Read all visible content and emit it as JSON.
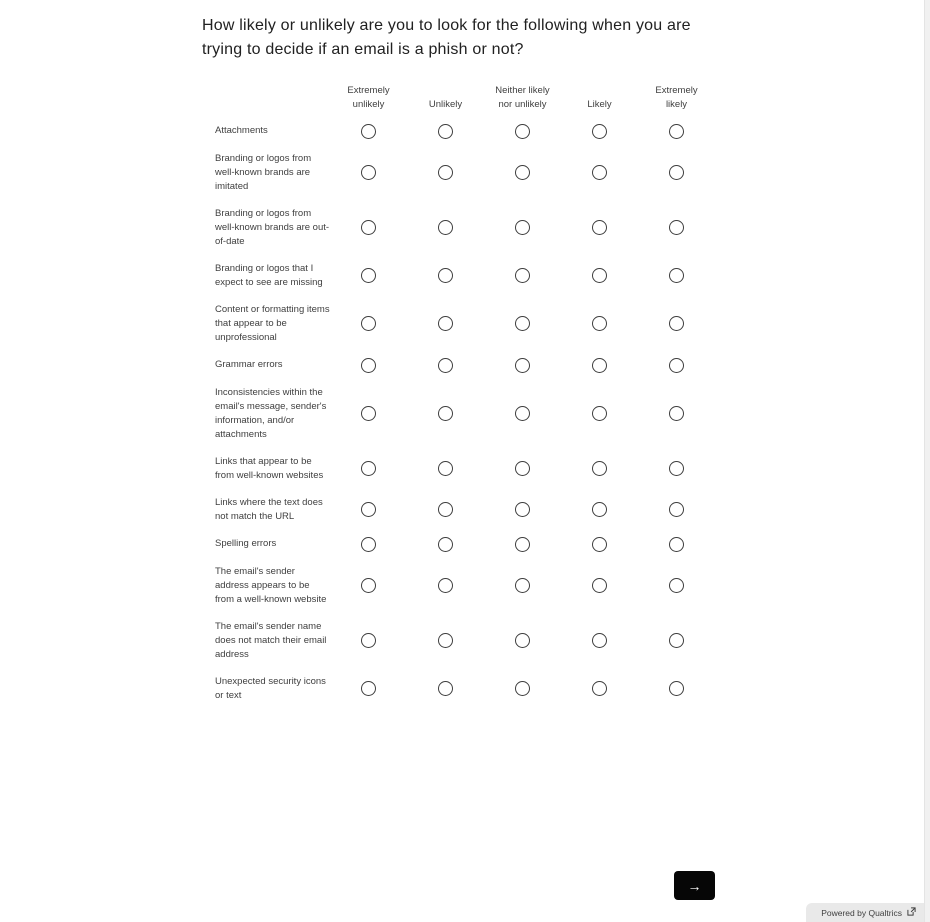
{
  "question": {
    "title": "How likely or unlikely are you to look for the following when you are trying to decide if an email is a phish or not?"
  },
  "table": {
    "columns": [
      "Extremely unlikely",
      "Unlikely",
      "Neither likely nor unlikely",
      "Likely",
      "Extremely likely"
    ],
    "rows": [
      {
        "label": "Attachments",
        "selected": null
      },
      {
        "label": "Branding or logos from well-known brands are imitated",
        "selected": null
      },
      {
        "label": "Branding or logos from well-known brands are out-of-date",
        "selected": null
      },
      {
        "label": "Branding or logos that I expect to see are missing",
        "selected": null
      },
      {
        "label": "Content or formatting items that appear to be unprofessional",
        "selected": null
      },
      {
        "label": "Grammar errors",
        "selected": null
      },
      {
        "label": "Inconsistencies within the email's message, sender's information, and/or attachments",
        "selected": null
      },
      {
        "label": "Links that appear to be from well-known websites",
        "selected": null
      },
      {
        "label": "Links where the text does not match the URL",
        "selected": null
      },
      {
        "label": "Spelling errors",
        "selected": null
      },
      {
        "label": "The email's sender address appears to be from a well-known website",
        "selected": null
      },
      {
        "label": "The email's sender name does not match their email address",
        "selected": null
      },
      {
        "label": "Unexpected security icons or text",
        "selected": null
      }
    ]
  },
  "next_button": {
    "label": "→"
  },
  "footer": {
    "powered_by": "Powered by Qualtrics"
  },
  "colors": {
    "next_button_bg": "#060606",
    "badge_bg": "#e9e9e9",
    "text": "#404040",
    "title_text": "#212121",
    "radio_border": "#3e3e3e",
    "scrollbar_track": "#f1f1f1"
  }
}
